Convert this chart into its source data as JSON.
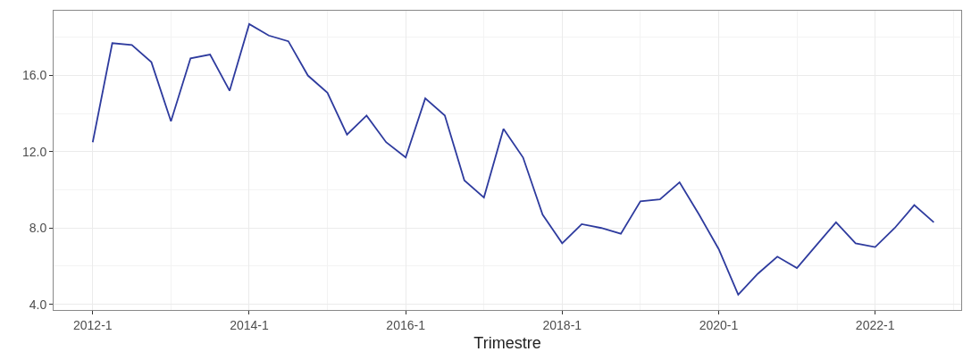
{
  "chart_data": {
    "type": "line",
    "xlabel": "Trimestre",
    "categories": [
      "2012-1",
      null,
      null,
      null,
      null,
      null,
      null,
      null,
      "2014-1",
      null,
      null,
      null,
      null,
      null,
      null,
      null,
      "2016-1",
      null,
      null,
      null,
      null,
      null,
      null,
      null,
      "2018-1",
      null,
      null,
      null,
      null,
      null,
      null,
      null,
      "2020-1",
      null,
      null,
      null,
      null,
      null,
      null,
      null,
      "2022-1",
      null,
      null,
      null
    ],
    "series": [
      {
        "color": "#2e3b9e",
        "values": [
          12.5,
          17.7,
          17.6,
          16.7,
          13.6,
          16.9,
          17.1,
          15.2,
          18.7,
          18.1,
          17.8,
          16.0,
          15.1,
          12.9,
          13.9,
          12.5,
          11.7,
          14.8,
          13.9,
          10.5,
          9.6,
          13.2,
          11.7,
          8.7,
          7.2,
          8.2,
          8.0,
          7.7,
          9.4,
          9.5,
          10.4,
          8.7,
          6.9,
          4.5,
          5.6,
          6.5,
          5.9,
          7.1,
          8.3,
          7.2,
          7.0,
          8.0,
          9.2,
          8.3
        ]
      }
    ],
    "ylim": [
      3.7,
      19.4
    ],
    "yticks": [
      {
        "value": 4,
        "label": "4.0"
      },
      {
        "value": 8,
        "label": "8.0"
      },
      {
        "value": 12,
        "label": "12.0"
      },
      {
        "value": 16,
        "label": "16.0"
      }
    ],
    "grid": true,
    "marker": "none",
    "line_style": "solid"
  }
}
